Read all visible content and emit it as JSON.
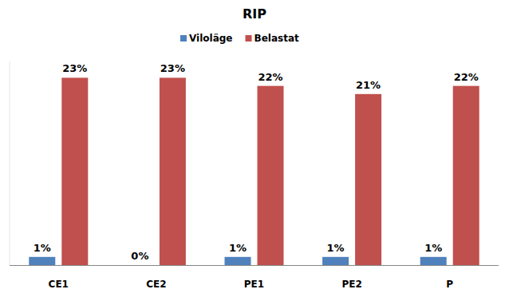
{
  "chart_data": {
    "type": "bar",
    "title": "RIP",
    "categories": [
      "CE1",
      "CE2",
      "PE1",
      "PE2",
      "P"
    ],
    "series": [
      {
        "name": "Viloläge",
        "color": "#4f81bd",
        "values": [
          1,
          0,
          1,
          1,
          1
        ],
        "value_labels": [
          "1%",
          "0%",
          "1%",
          "1%",
          "1%"
        ]
      },
      {
        "name": "Belastat",
        "color": "#c0504d",
        "values": [
          23,
          23,
          22,
          21,
          22
        ],
        "value_labels": [
          "23%",
          "23%",
          "22%",
          "21%",
          "22%"
        ]
      }
    ],
    "ylim": [
      0,
      25
    ],
    "grid": false,
    "legend": "top",
    "data_labels": true,
    "tick_labels": "x"
  }
}
